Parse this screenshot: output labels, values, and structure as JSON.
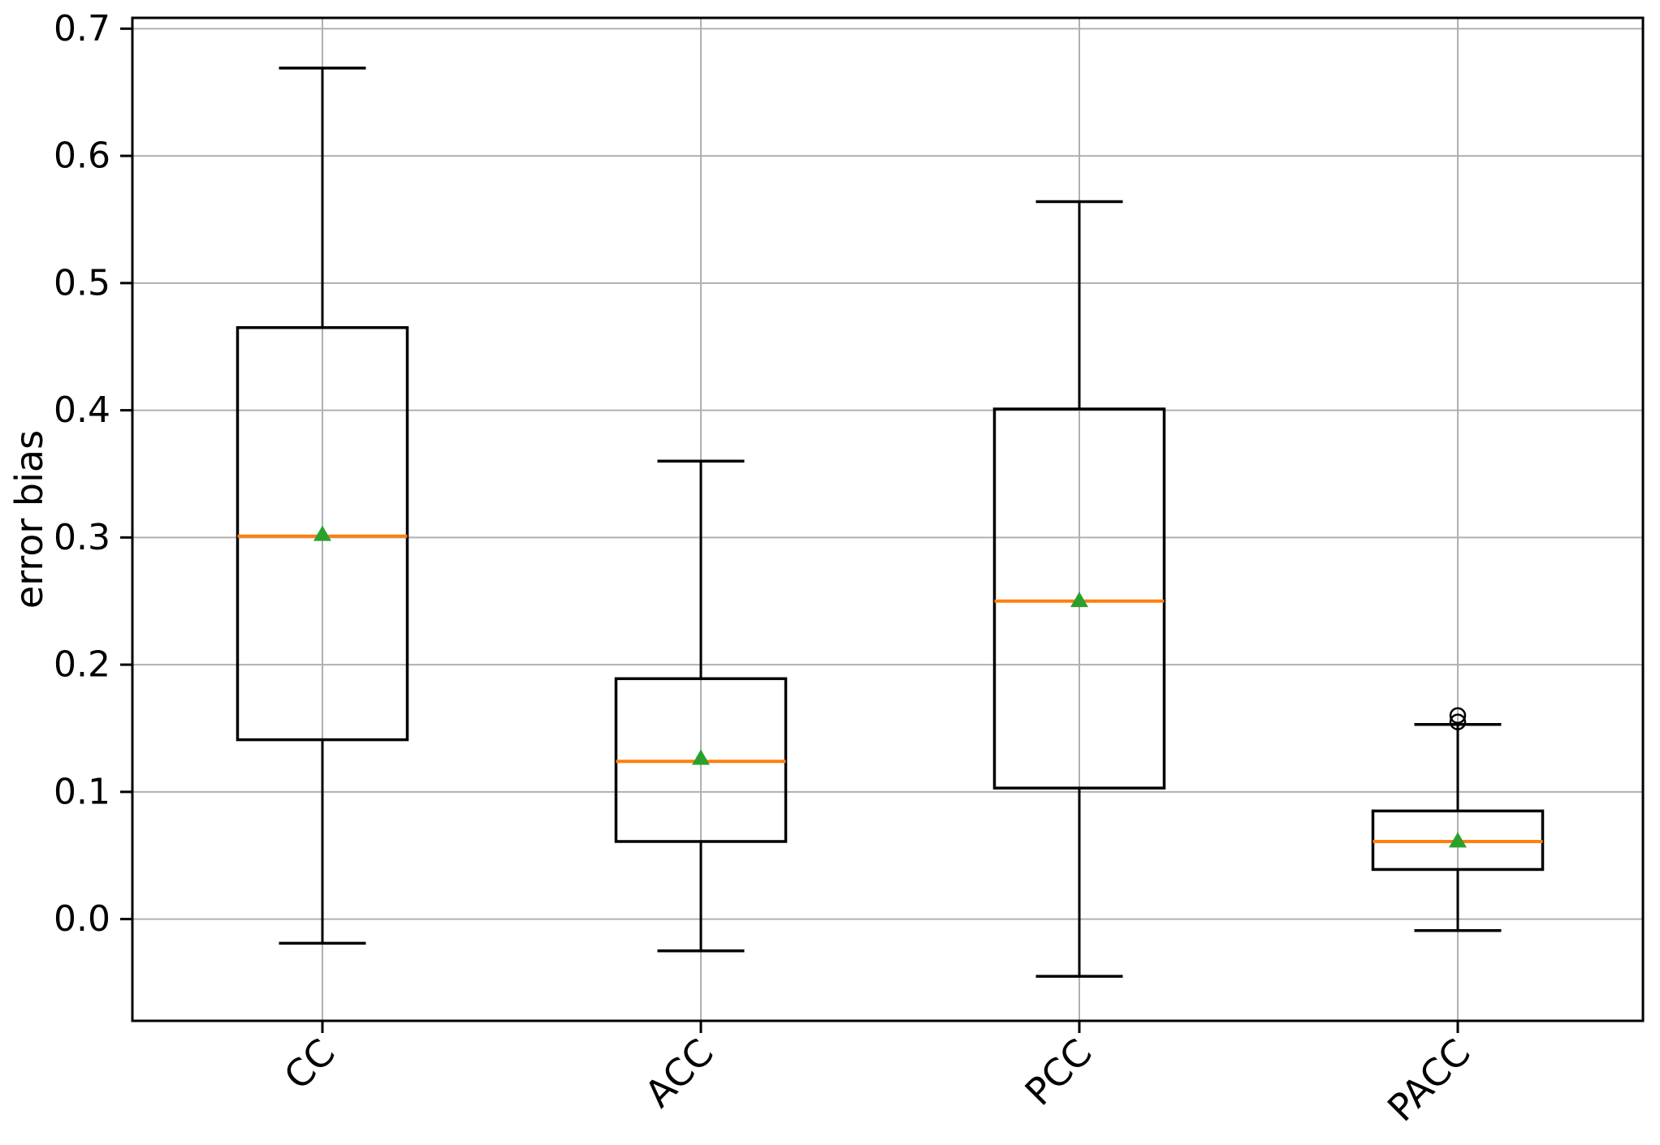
{
  "chart_data": {
    "type": "box",
    "title": "",
    "xlabel": "",
    "ylabel": "error bias",
    "categories": [
      "CC",
      "ACC",
      "PCC",
      "PACC"
    ],
    "ytick_values": [
      0.0,
      0.1,
      0.2,
      0.3,
      0.4,
      0.5,
      0.6,
      0.7
    ],
    "ytick_labels": [
      "0.0",
      "0.1",
      "0.2",
      "0.3",
      "0.4",
      "0.5",
      "0.6",
      "0.7"
    ],
    "ylim": [
      -0.08,
      0.7085
    ],
    "grid": true,
    "xtick_rotation_deg": 45,
    "series": [
      {
        "label": "CC",
        "whislo": -0.019,
        "q1": 0.141,
        "med": 0.301,
        "mean": 0.303,
        "q3": 0.465,
        "whishi": 0.669,
        "fliers": []
      },
      {
        "label": "ACC",
        "whislo": -0.025,
        "q1": 0.061,
        "med": 0.124,
        "mean": 0.127,
        "q3": 0.189,
        "whishi": 0.36,
        "fliers": []
      },
      {
        "label": "PCC",
        "whislo": -0.045,
        "q1": 0.103,
        "med": 0.25,
        "mean": 0.251,
        "q3": 0.401,
        "whishi": 0.564,
        "fliers": []
      },
      {
        "label": "PACC",
        "whislo": -0.009,
        "q1": 0.039,
        "med": 0.061,
        "mean": 0.062,
        "q3": 0.085,
        "whishi": 0.153,
        "fliers": [
          0.155,
          0.16
        ]
      }
    ],
    "colors": {
      "box": "#000000",
      "whisker": "#000000",
      "median": "#ff7f0e",
      "mean_marker": "#2ca02c",
      "flier_edge": "#000000",
      "grid": "#b0b0b0",
      "spine": "#000000",
      "tick_label": "#000000",
      "background": "#ffffff"
    }
  }
}
